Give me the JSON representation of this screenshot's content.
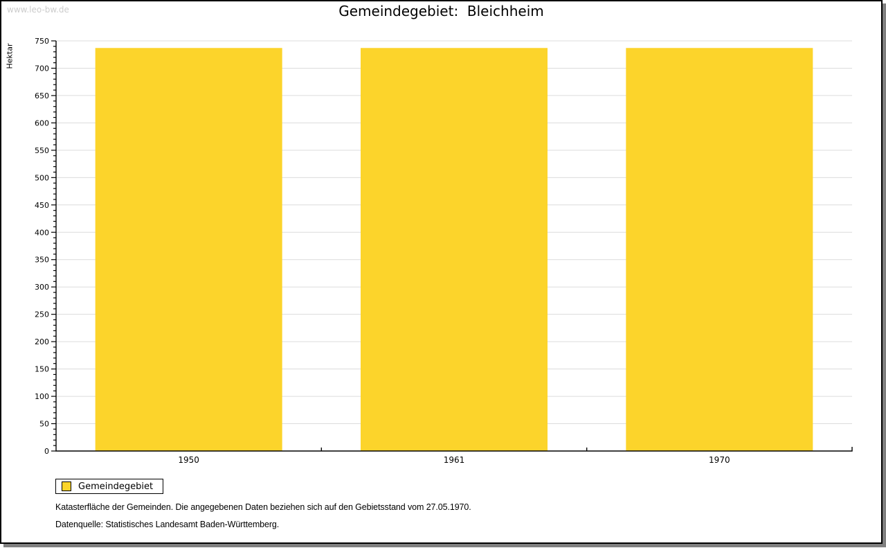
{
  "watermark": "www.leo-bw.de",
  "title": "Gemeindegebiet:  Bleichheim",
  "chart_data": {
    "type": "bar",
    "title": "Gemeindegebiet:  Bleichheim",
    "categories": [
      "1950",
      "1961",
      "1970"
    ],
    "series": [
      {
        "name": "Gemeindegebiet",
        "values": [
          737,
          737,
          737
        ]
      }
    ],
    "xlabel": "",
    "ylabel": "Hektar",
    "ylim": [
      0,
      750
    ],
    "y_major_step": 50,
    "y_minor_step": 10,
    "grid": "horizontal-major",
    "legend_position": "bottom-left"
  },
  "legend": {
    "items": [
      {
        "label": "Gemeindegebiet",
        "color": "#FCD42B"
      }
    ]
  },
  "footnotes": [
    "Katasterfläche der Gemeinden. Die angegebenen Daten beziehen sich auf den Gebietsstand vom 27.05.1970.",
    "Datenquelle: Statistisches Landesamt Baden-Württemberg."
  ],
  "colors": {
    "bar": "#FCD42B",
    "grid": "#DCDCDC",
    "axis": "#000000",
    "watermark": "#CCCCCC",
    "shadow": "#808080"
  }
}
